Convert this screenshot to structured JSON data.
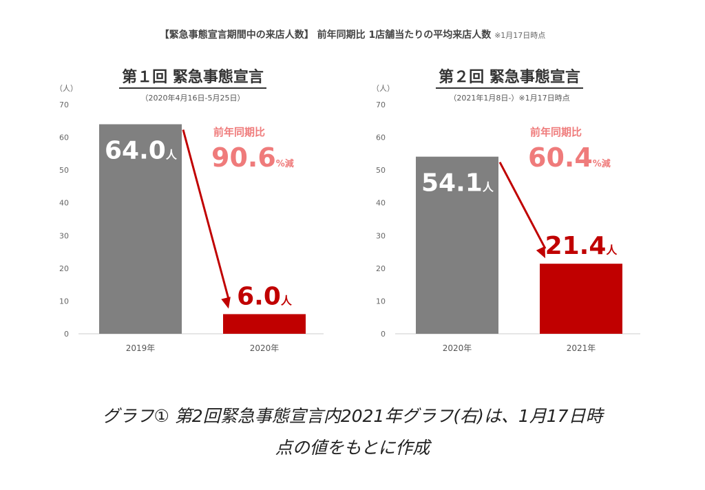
{
  "header": {
    "title": "【緊急事態宣言期間中の来店人数】 前年同期比 1店舗当たりの平均来店人数",
    "note": "※1月17日時点"
  },
  "chart_data": [
    {
      "type": "bar",
      "title": "第１回 緊急事態宣言",
      "subtitle": "（2020年4月16日-5月25日）",
      "ylabel": "（人）",
      "ylim": [
        0,
        70
      ],
      "yticks": [
        0,
        10,
        20,
        30,
        40,
        50,
        60,
        70
      ],
      "categories": [
        "2019年",
        "2020年"
      ],
      "values": [
        64.0,
        6.0
      ],
      "value_labels": [
        "64.0",
        "6.0"
      ],
      "unit": "人",
      "colors": [
        "#808080",
        "#c00000"
      ],
      "annotation": {
        "label": "前年同期比",
        "value": "90.6",
        "suffix": "%減"
      }
    },
    {
      "type": "bar",
      "title": "第２回 緊急事態宣言",
      "subtitle": "（2021年1月8日-）※1月17日時点",
      "ylabel": "（人）",
      "ylim": [
        0,
        70
      ],
      "yticks": [
        0,
        10,
        20,
        30,
        40,
        50,
        60,
        70
      ],
      "categories": [
        "2020年",
        "2021年"
      ],
      "values": [
        54.1,
        21.4
      ],
      "value_labels": [
        "54.1",
        "21.4"
      ],
      "unit": "人",
      "colors": [
        "#808080",
        "#c00000"
      ],
      "annotation": {
        "label": "前年同期比",
        "value": "60.4",
        "suffix": "%減"
      }
    }
  ],
  "caption": {
    "line1": "グラフ① 第2回緊急事態宣言内2021年グラフ(右)は、1月17日時",
    "line2": "点の値をもとに作成"
  }
}
